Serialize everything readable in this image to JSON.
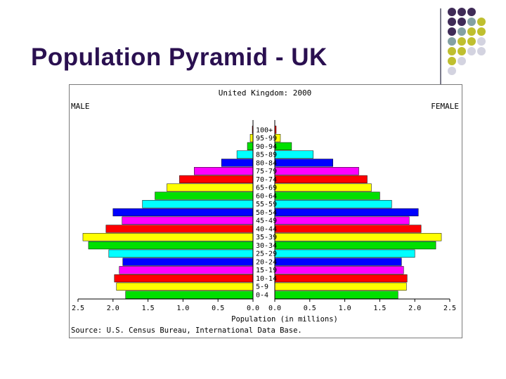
{
  "slide": {
    "title": "Population Pyramid - UK",
    "decoration_colors": [
      "#3f2b57",
      "#84a1a3",
      "#bfbf2f",
      "#d3d3e0"
    ]
  },
  "chart_data": {
    "type": "bar",
    "title": "United Kingdom: 2000",
    "left_label": "MALE",
    "right_label": "FEMALE",
    "xlabel": "Population (in millions)",
    "source": "Source: U.S. Census Bureau, International Data Base.",
    "xlim": [
      0,
      2.5
    ],
    "x_ticks_male": [
      "2.5",
      "2.0",
      "1.5",
      "1.0",
      "0.5",
      "0.0"
    ],
    "x_ticks_female": [
      "0.0",
      "0.5",
      "1.0",
      "1.5",
      "2.0",
      "2.5"
    ],
    "categories": [
      "100+",
      "95-99",
      "90-94",
      "85-89",
      "80-84",
      "75-79",
      "70-74",
      "65-69",
      "60-64",
      "55-59",
      "50-54",
      "45-49",
      "40-44",
      "35-39",
      "30-34",
      "25-29",
      "20-24",
      "15-19",
      "10-14",
      "5-9",
      "0-4"
    ],
    "series": [
      {
        "name": "MALE",
        "values": [
          0.01,
          0.04,
          0.08,
          0.23,
          0.45,
          0.84,
          1.05,
          1.23,
          1.4,
          1.58,
          2.0,
          1.87,
          2.1,
          2.43,
          2.35,
          2.06,
          1.86,
          1.91,
          1.98,
          1.95,
          1.82
        ]
      },
      {
        "name": "FEMALE",
        "values": [
          0.02,
          0.08,
          0.24,
          0.55,
          0.83,
          1.2,
          1.32,
          1.38,
          1.5,
          1.67,
          2.05,
          1.92,
          2.09,
          2.38,
          2.3,
          2.0,
          1.81,
          1.84,
          1.89,
          1.88,
          1.76
        ]
      }
    ],
    "bar_colors": [
      "#00ffff",
      "#0000ff",
      "#ff00ff",
      "#ff0000",
      "#ffff00",
      "#00e000"
    ]
  }
}
